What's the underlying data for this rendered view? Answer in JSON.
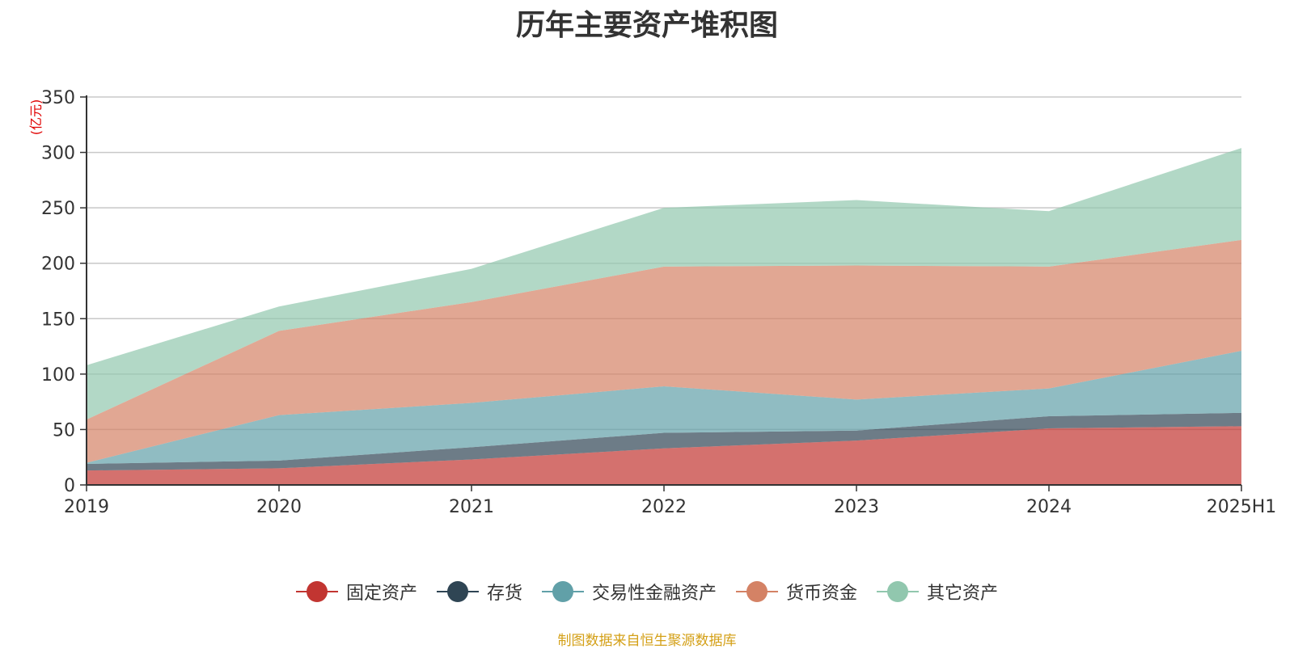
{
  "title": "历年主要资产堆积图",
  "source_note": "制图数据来自恒生聚源数据库",
  "chart_data": {
    "type": "area",
    "stacked": true,
    "title": "历年主要资产堆积图",
    "ylabel": "(亿元)",
    "xlabel": "",
    "categories": [
      "2019",
      "2020",
      "2021",
      "2022",
      "2023",
      "2024",
      "2025H1"
    ],
    "ylim": [
      0,
      350
    ],
    "yticks": [
      0,
      50,
      100,
      150,
      200,
      250,
      300,
      350
    ],
    "grid": true,
    "legend_position": "bottom",
    "series": [
      {
        "name": "固定资产",
        "color": "#c23531",
        "values": [
          13,
          15,
          23,
          33,
          40,
          51,
          53
        ]
      },
      {
        "name": "存货",
        "color": "#2f4554",
        "values": [
          6,
          7,
          11,
          14,
          9,
          11,
          12
        ]
      },
      {
        "name": "交易性金融资产",
        "color": "#61a0a8",
        "values": [
          1,
          41,
          40,
          42,
          28,
          25,
          56
        ]
      },
      {
        "name": "货币资金",
        "color": "#d48265",
        "values": [
          39,
          76,
          91,
          108,
          121,
          110,
          100
        ]
      },
      {
        "name": "其它资产",
        "color": "#91c7ae",
        "values": [
          49,
          22,
          30,
          53,
          59,
          50,
          83
        ]
      }
    ]
  }
}
